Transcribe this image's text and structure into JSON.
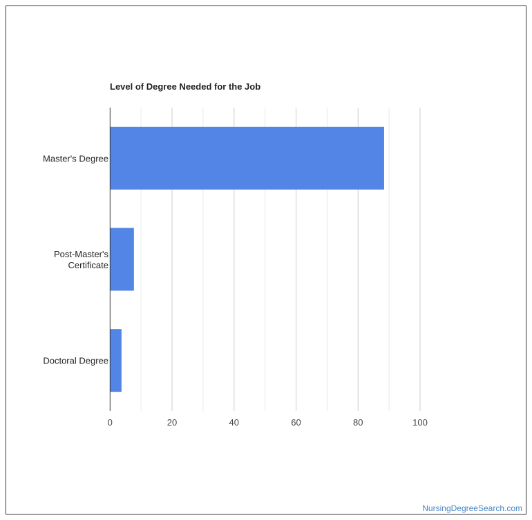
{
  "chart_data": {
    "type": "bar",
    "orientation": "horizontal",
    "title": "Level of Degree Needed for the Job",
    "categories": [
      [
        "Master's Degree"
      ],
      [
        "Post-Master's",
        "Certificate"
      ],
      [
        "Doctoral Degree"
      ]
    ],
    "values": [
      88.4,
      7.7,
      3.7
    ],
    "xlim": [
      0,
      100
    ],
    "xticks": [
      "0",
      "20",
      "40",
      "60",
      "80",
      "100"
    ],
    "grid": true,
    "bar_color": "#5285e5"
  },
  "credit": "NursingDegreeSearch.com"
}
